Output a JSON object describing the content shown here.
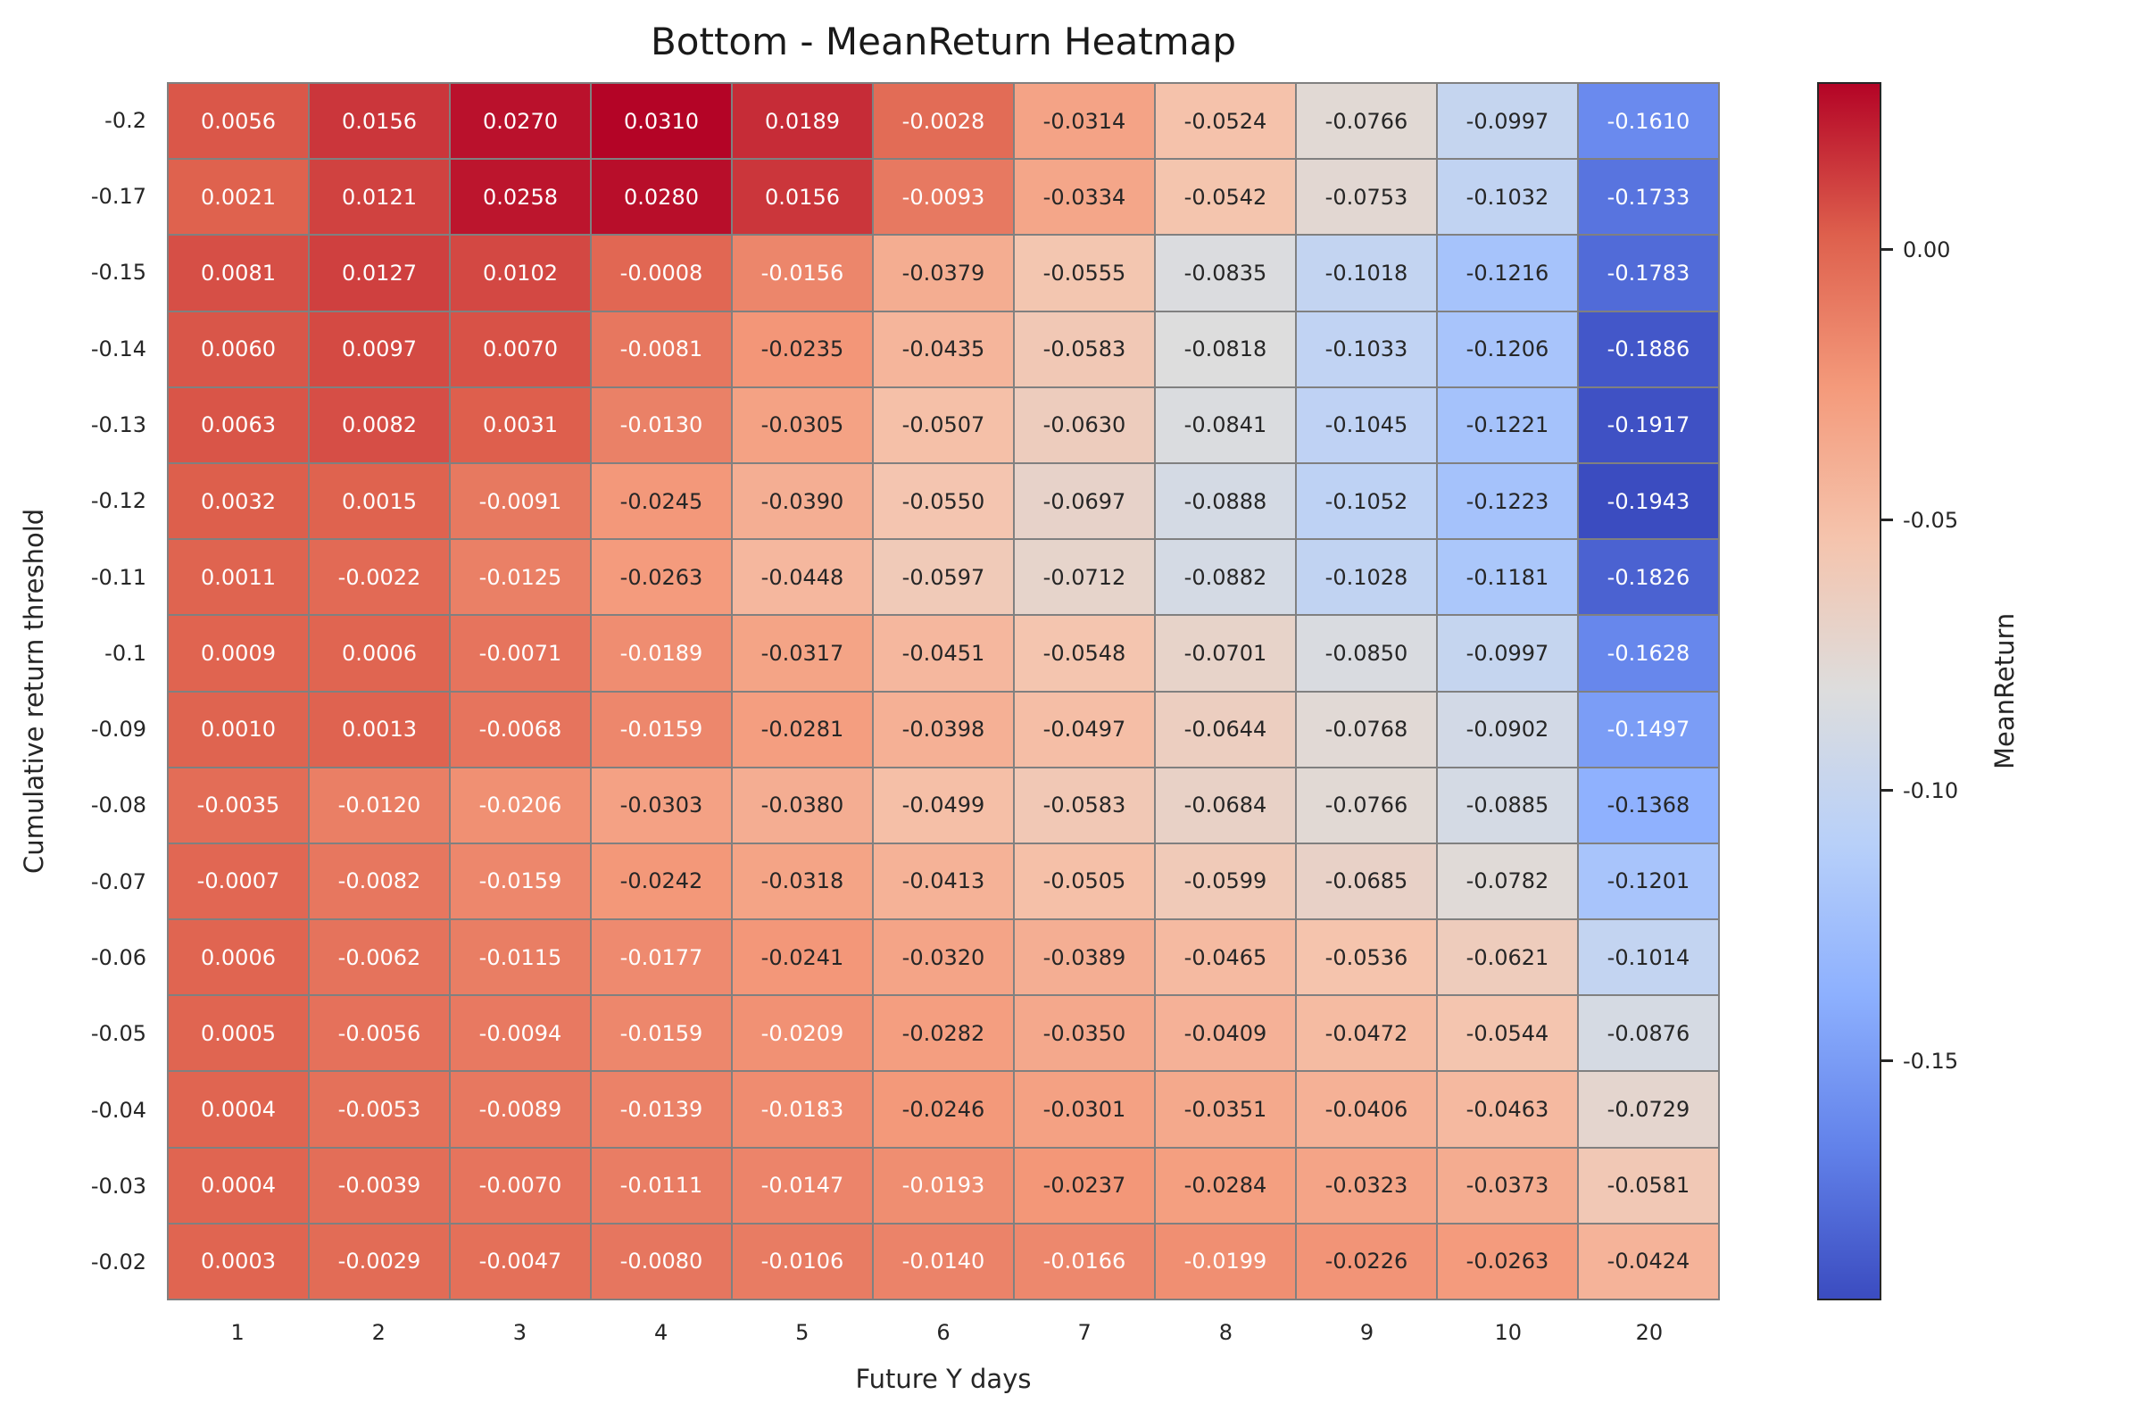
{
  "chart_data": {
    "type": "heatmap",
    "title": "Bottom - MeanReturn Heatmap",
    "xlabel": "Future Y days",
    "ylabel": "Cumulative return threshold",
    "x_categories": [
      "1",
      "2",
      "3",
      "4",
      "5",
      "6",
      "7",
      "8",
      "9",
      "10",
      "20"
    ],
    "y_categories": [
      "-0.2",
      "-0.17",
      "-0.15",
      "-0.14",
      "-0.13",
      "-0.12",
      "-0.11",
      "-0.1",
      "-0.09",
      "-0.08",
      "-0.07",
      "-0.06",
      "-0.05",
      "-0.04",
      "-0.03",
      "-0.02"
    ],
    "values": [
      [
        0.0056,
        0.0156,
        0.027,
        0.031,
        0.0189,
        -0.0028,
        -0.0314,
        -0.0524,
        -0.0766,
        -0.0997,
        -0.161
      ],
      [
        0.0021,
        0.0121,
        0.0258,
        0.028,
        0.0156,
        -0.0093,
        -0.0334,
        -0.0542,
        -0.0753,
        -0.1032,
        -0.1733
      ],
      [
        0.0081,
        0.0127,
        0.0102,
        -0.0008,
        -0.0156,
        -0.0379,
        -0.0555,
        -0.0835,
        -0.1018,
        -0.1216,
        -0.1783
      ],
      [
        0.006,
        0.0097,
        0.007,
        -0.0081,
        -0.0235,
        -0.0435,
        -0.0583,
        -0.0818,
        -0.1033,
        -0.1206,
        -0.1886
      ],
      [
        0.0063,
        0.0082,
        0.0031,
        -0.013,
        -0.0305,
        -0.0507,
        -0.063,
        -0.0841,
        -0.1045,
        -0.1221,
        -0.1917
      ],
      [
        0.0032,
        0.0015,
        -0.0091,
        -0.0245,
        -0.039,
        -0.055,
        -0.0697,
        -0.0888,
        -0.1052,
        -0.1223,
        -0.1943
      ],
      [
        0.0011,
        -0.0022,
        -0.0125,
        -0.0263,
        -0.0448,
        -0.0597,
        -0.0712,
        -0.0882,
        -0.1028,
        -0.1181,
        -0.1826
      ],
      [
        0.0009,
        0.0006,
        -0.0071,
        -0.0189,
        -0.0317,
        -0.0451,
        -0.0548,
        -0.0701,
        -0.085,
        -0.0997,
        -0.1628
      ],
      [
        0.001,
        0.0013,
        -0.0068,
        -0.0159,
        -0.0281,
        -0.0398,
        -0.0497,
        -0.0644,
        -0.0768,
        -0.0902,
        -0.1497
      ],
      [
        -0.0035,
        -0.012,
        -0.0206,
        -0.0303,
        -0.038,
        -0.0499,
        -0.0583,
        -0.0684,
        -0.0766,
        -0.0885,
        -0.1368
      ],
      [
        -0.0007,
        -0.0082,
        -0.0159,
        -0.0242,
        -0.0318,
        -0.0413,
        -0.0505,
        -0.0599,
        -0.0685,
        -0.0782,
        -0.1201
      ],
      [
        0.0006,
        -0.0062,
        -0.0115,
        -0.0177,
        -0.0241,
        -0.032,
        -0.0389,
        -0.0465,
        -0.0536,
        -0.0621,
        -0.1014
      ],
      [
        0.0005,
        -0.0056,
        -0.0094,
        -0.0159,
        -0.0209,
        -0.0282,
        -0.035,
        -0.0409,
        -0.0472,
        -0.0544,
        -0.0876
      ],
      [
        0.0004,
        -0.0053,
        -0.0089,
        -0.0139,
        -0.0183,
        -0.0246,
        -0.0301,
        -0.0351,
        -0.0406,
        -0.0463,
        -0.0729
      ],
      [
        0.0004,
        -0.0039,
        -0.007,
        -0.0111,
        -0.0147,
        -0.0193,
        -0.0237,
        -0.0284,
        -0.0323,
        -0.0373,
        -0.0581
      ],
      [
        0.0003,
        -0.0029,
        -0.0047,
        -0.008,
        -0.0106,
        -0.014,
        -0.0166,
        -0.0199,
        -0.0226,
        -0.0263,
        -0.0424
      ]
    ],
    "decimals": 4,
    "vmin": -0.1943,
    "vmax": 0.031,
    "colormap": "coolwarm",
    "colormap_stops": [
      {
        "t": 0.0,
        "c": [
          59,
          76,
          192
        ]
      },
      {
        "t": 0.125,
        "c": [
          98,
          130,
          234
        ]
      },
      {
        "t": 0.25,
        "c": [
          141,
          176,
          254
        ]
      },
      {
        "t": 0.375,
        "c": [
          184,
          208,
          249
        ]
      },
      {
        "t": 0.5,
        "c": [
          221,
          221,
          221
        ]
      },
      {
        "t": 0.625,
        "c": [
          245,
          196,
          173
        ]
      },
      {
        "t": 0.75,
        "c": [
          244,
          154,
          123
        ]
      },
      {
        "t": 0.875,
        "c": [
          222,
          96,
          77
        ]
      },
      {
        "t": 1.0,
        "c": [
          180,
          4,
          38
        ]
      }
    ],
    "colorbar": {
      "label": "MeanReturn",
      "ticks": [
        0.0,
        -0.05,
        -0.1,
        -0.15
      ],
      "tick_labels": [
        "0.00",
        "-0.05",
        "-0.10",
        "-0.15"
      ]
    },
    "style": {
      "grid_line_color": "#808080",
      "text_dark": "#262626",
      "text_light": "#ffffff",
      "background": "#ffffff"
    },
    "legend_position": "right-colorbar",
    "grid": false
  }
}
